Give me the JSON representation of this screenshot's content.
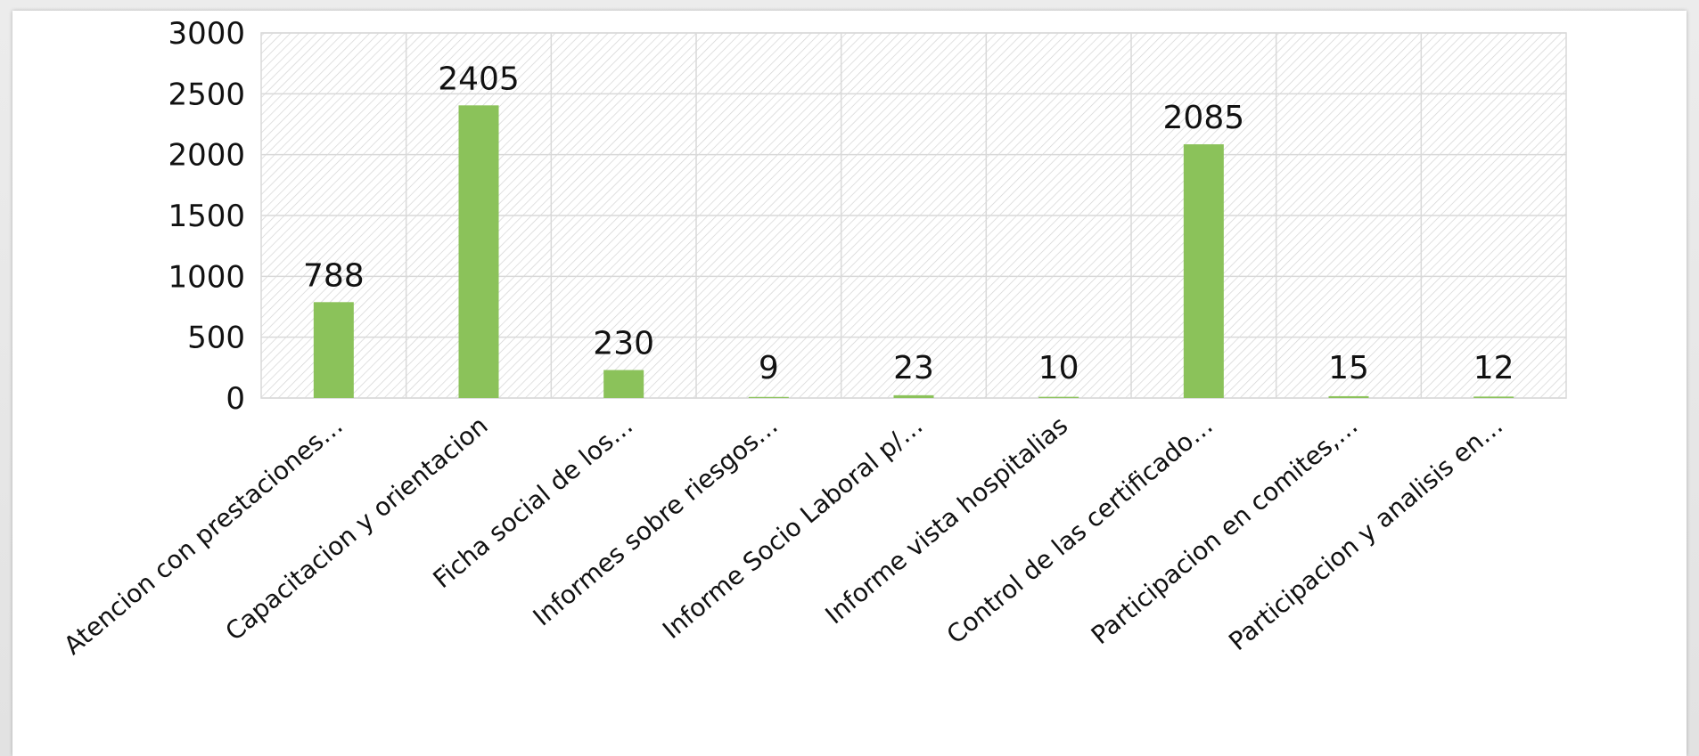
{
  "chart_data": {
    "type": "bar",
    "categories": [
      "Atencion con prestaciones…",
      "Capacitacion y orientacion",
      "Ficha social de los…",
      "Informes sobre riesgos…",
      "Informe Socio Laboral p/…",
      "Informe vista hospitalias",
      "Control de las certificado…",
      "Participacion en comites,…",
      "Participacion y analisis en…"
    ],
    "values": [
      788,
      2405,
      230,
      9,
      23,
      10,
      2085,
      15,
      12
    ],
    "data_labels": [
      "788",
      "2405",
      "230",
      "9",
      "23",
      "10",
      "2085",
      "15",
      "12"
    ],
    "y_ticks": [
      "0",
      "500",
      "1000",
      "1500",
      "2000",
      "2500",
      "3000"
    ],
    "ylim": [
      0,
      3000
    ],
    "grid": true,
    "legend": "none",
    "title": "",
    "xlabel": "",
    "ylabel": "",
    "colors": {
      "bar": "#8BC25A",
      "grid": "#d9d9d9",
      "plot_hatch": "#cfcfcf"
    }
  }
}
